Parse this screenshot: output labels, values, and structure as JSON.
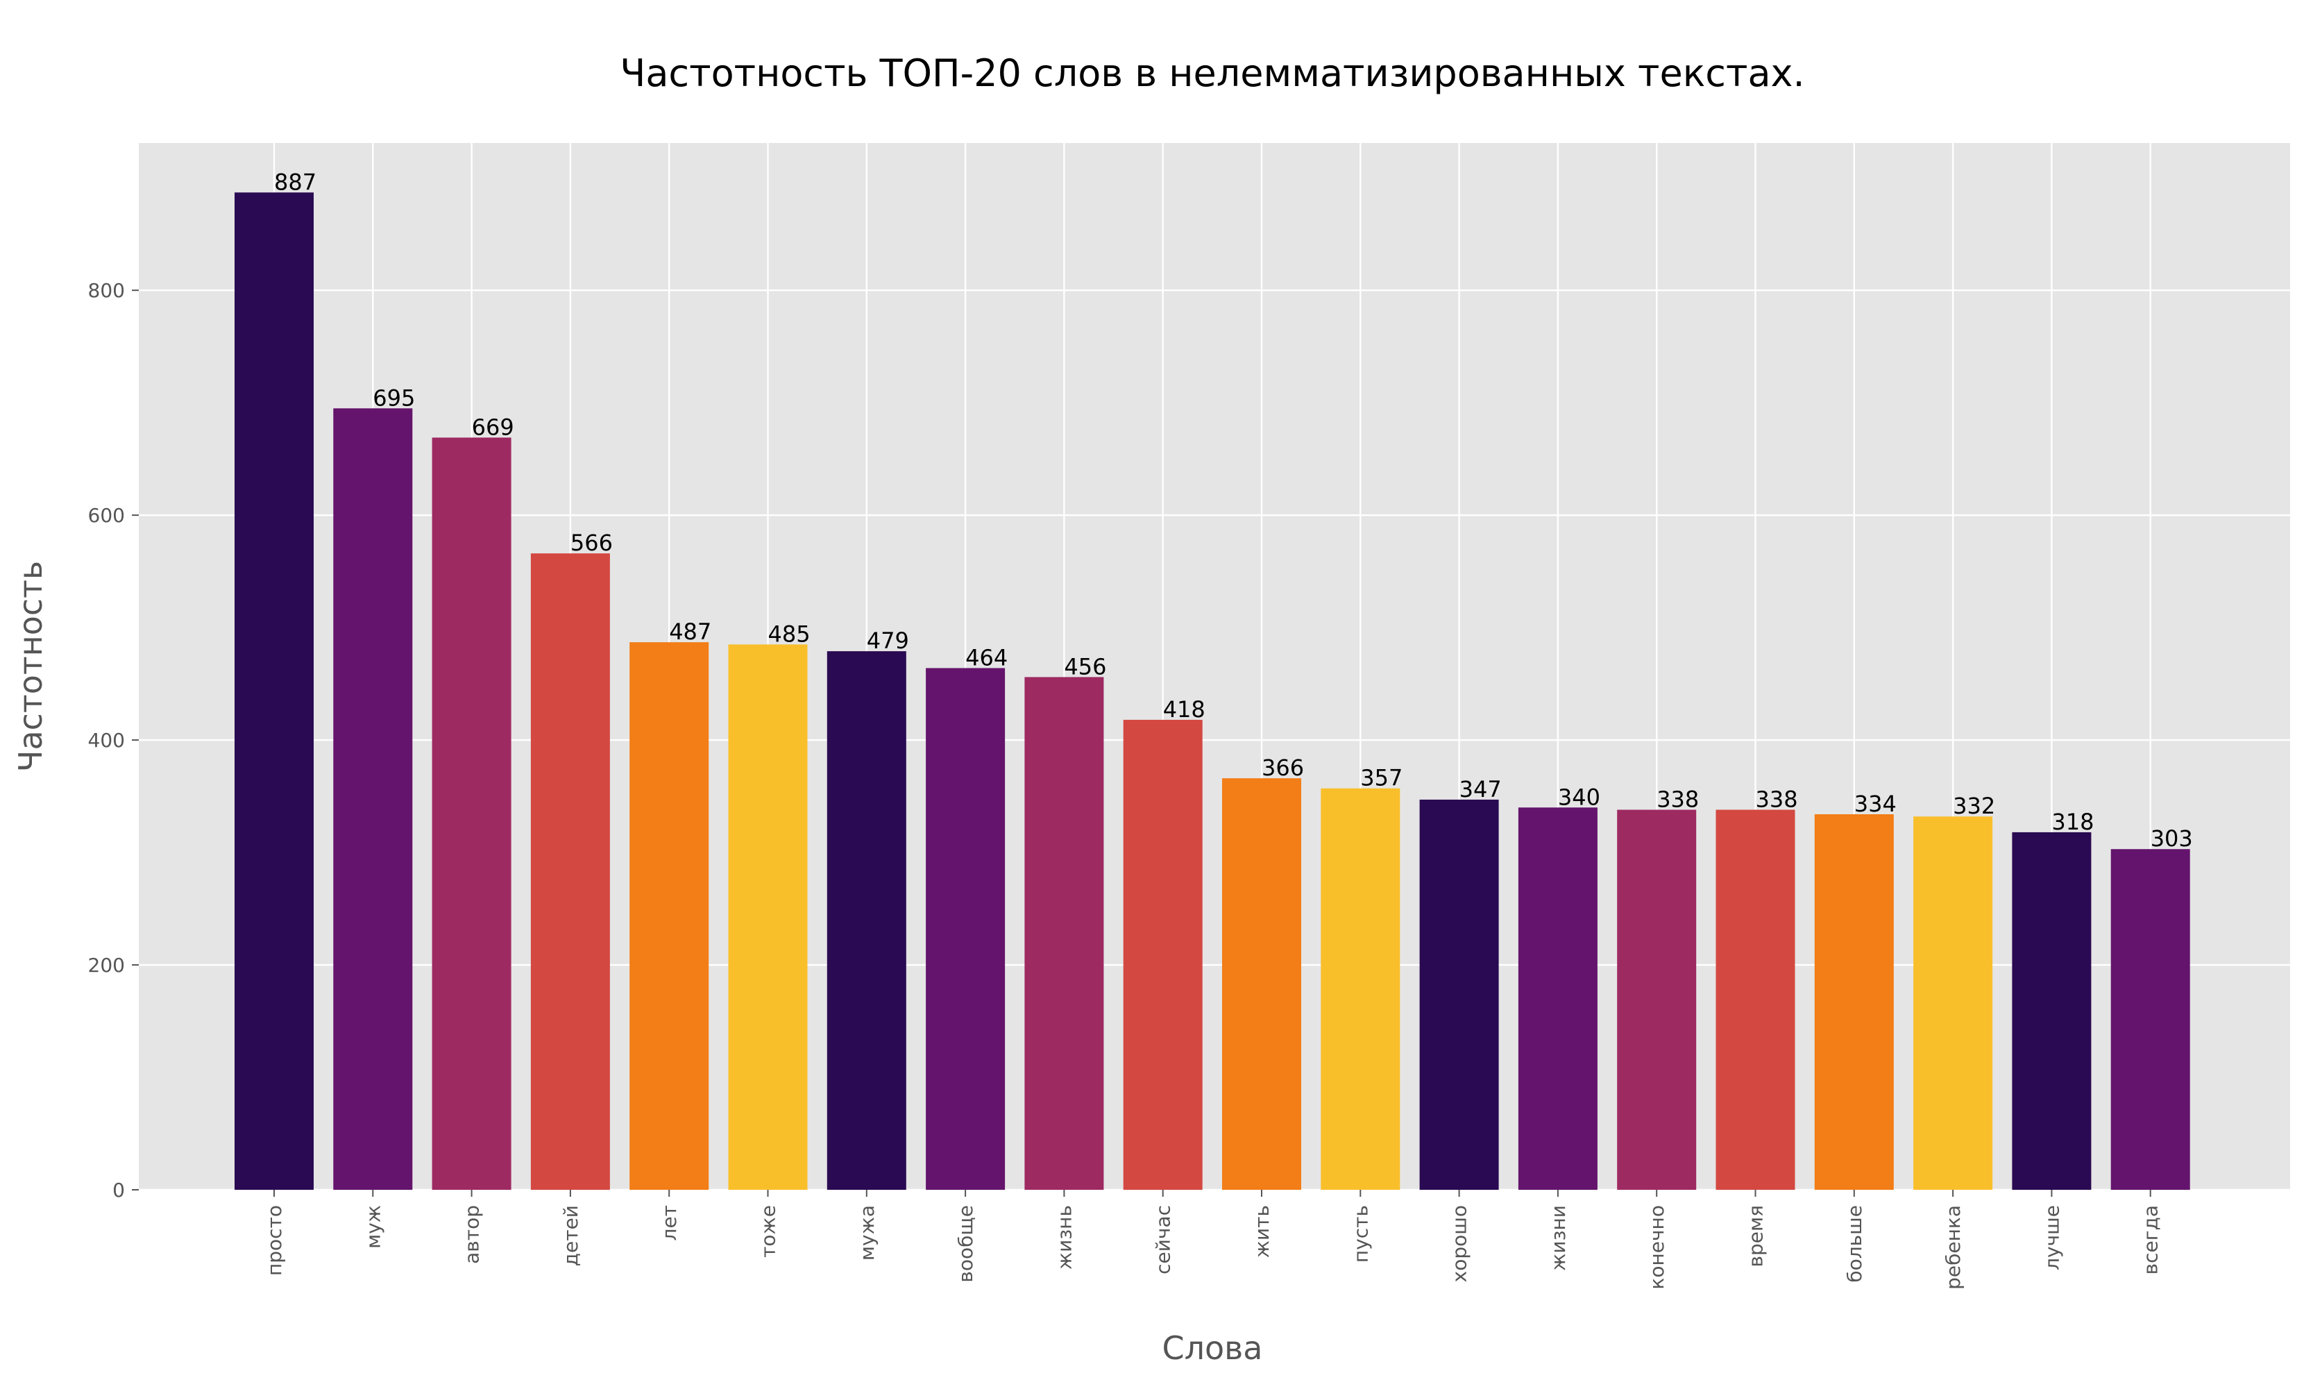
{
  "chart_data": {
    "type": "bar",
    "title": "Частотность ТОП-20 слов в нелемматизированных текстах.",
    "xlabel": "Слова",
    "ylabel": "Частотность",
    "categories": [
      "просто",
      "муж",
      "автор",
      "детей",
      "лет",
      "тоже",
      "мужа",
      "вообще",
      "жизнь",
      "сейчас",
      "жить",
      "пусть",
      "хорошо",
      "жизни",
      "конечно",
      "время",
      "больше",
      "ребенка",
      "лучше",
      "всегда"
    ],
    "values": [
      887,
      695,
      669,
      566,
      487,
      485,
      479,
      464,
      456,
      418,
      366,
      357,
      347,
      340,
      338,
      338,
      334,
      332,
      318,
      303
    ],
    "ylim": [
      0,
      931
    ],
    "yticks": [
      0,
      200,
      400,
      600,
      800
    ],
    "grid": true,
    "colors": [
      "#2a0a52",
      "#64146c",
      "#9e2a62",
      "#d44842",
      "#f37d16",
      "#f9bf2b"
    ],
    "background": "#e5e5e5"
  }
}
